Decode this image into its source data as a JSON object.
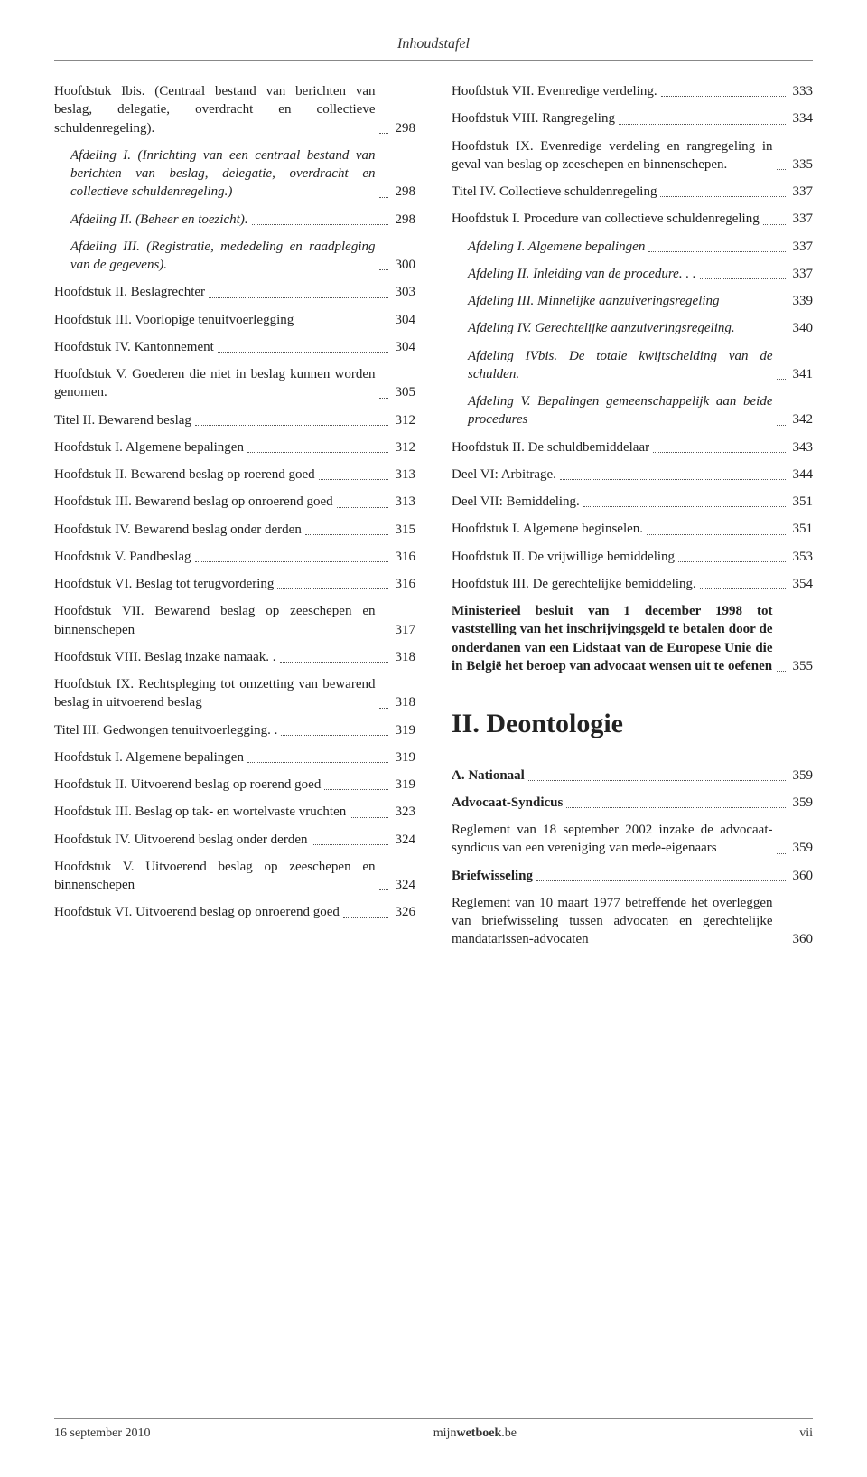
{
  "header": {
    "title": "Inhoudstafel"
  },
  "left": [
    {
      "label": "Hoofdstuk Ibis. (Centraal bestand van berichten van beslag, delegatie, overdracht en collectieve schuldenregeling).",
      "page": "298",
      "indent": 0
    },
    {
      "label": "Afdeling I. (Inrichting van een centraal bestand van berichten van beslag, delegatie, overdracht en collectieve schuldenregeling.)",
      "page": "298",
      "indent": 1,
      "italic": true
    },
    {
      "label": "Afdeling II. (Beheer en toezicht).",
      "page": "298",
      "indent": 1,
      "italic": true
    },
    {
      "label": "Afdeling III. (Registratie, mededeling en raadpleging van de gegevens).",
      "page": "300",
      "indent": 1,
      "italic": true
    },
    {
      "label": "Hoofdstuk II. Beslagrechter",
      "page": "303",
      "indent": 0
    },
    {
      "label": "Hoofdstuk III. Voorlopige tenuitvoerlegging",
      "page": "304",
      "indent": 0
    },
    {
      "label": "Hoofdstuk IV. Kantonnement",
      "page": "304",
      "indent": 0
    },
    {
      "label": "Hoofdstuk V. Goederen die niet in beslag kunnen worden genomen.",
      "page": "305",
      "indent": 0
    },
    {
      "label": "Titel II. Bewarend beslag",
      "page": "312",
      "indent": 0
    },
    {
      "label": "Hoofdstuk I. Algemene bepalingen",
      "page": "312",
      "indent": 0
    },
    {
      "label": "Hoofdstuk II. Bewarend beslag op roerend goed",
      "page": "313",
      "indent": 0
    },
    {
      "label": "Hoofdstuk III. Bewarend beslag op onroerend goed",
      "page": "313",
      "indent": 0
    },
    {
      "label": "Hoofdstuk IV. Bewarend beslag onder derden",
      "page": "315",
      "indent": 0
    },
    {
      "label": "Hoofdstuk V. Pandbeslag",
      "page": "316",
      "indent": 0
    },
    {
      "label": "Hoofdstuk VI. Beslag tot terugvordering",
      "page": "316",
      "indent": 0
    },
    {
      "label": "Hoofdstuk VII. Bewarend beslag op zeeschepen en binnenschepen",
      "page": "317",
      "indent": 0
    },
    {
      "label": "Hoofdstuk VIII. Beslag inzake namaak. .",
      "page": "318",
      "indent": 0
    },
    {
      "label": "Hoofdstuk IX. Rechtspleging tot omzetting van bewarend beslag in uitvoerend beslag",
      "page": "318",
      "indent": 0
    },
    {
      "label": "Titel III. Gedwongen tenuitvoerlegging. .",
      "page": "319",
      "indent": 0
    },
    {
      "label": "Hoofdstuk I. Algemene bepalingen",
      "page": "319",
      "indent": 0
    },
    {
      "label": "Hoofdstuk II. Uitvoerend beslag op roerend goed",
      "page": "319",
      "indent": 0
    },
    {
      "label": "Hoofdstuk III. Beslag op tak- en wortelvaste vruchten",
      "page": "323",
      "indent": 0
    },
    {
      "label": "Hoofdstuk IV. Uitvoerend beslag onder derden",
      "page": "324",
      "indent": 0
    },
    {
      "label": "Hoofdstuk V. Uitvoerend beslag op zeeschepen en binnenschepen",
      "page": "324",
      "indent": 0
    },
    {
      "label": "Hoofdstuk VI. Uitvoerend beslag op onroerend goed",
      "page": "326",
      "indent": 0
    }
  ],
  "right": [
    {
      "label": "Hoofdstuk VII. Evenredige verdeling.",
      "page": "333",
      "indent": 0
    },
    {
      "label": "Hoofdstuk VIII. Rangregeling",
      "page": "334",
      "indent": 0
    },
    {
      "label": "Hoofdstuk IX. Evenredige verdeling en rangregeling in geval van beslag op zeeschepen en binnenschepen.",
      "page": "335",
      "indent": 0
    },
    {
      "label": "Titel IV. Collectieve schuldenregeling",
      "page": "337",
      "indent": 0
    },
    {
      "label": "Hoofdstuk I. Procedure van collectieve schuldenregeling",
      "page": "337",
      "indent": 0
    },
    {
      "label": "Afdeling I. Algemene bepalingen",
      "page": "337",
      "indent": 1,
      "italic": true
    },
    {
      "label": "Afdeling II. Inleiding van de procedure. . .",
      "page": "337",
      "indent": 1,
      "italic": true
    },
    {
      "label": "Afdeling III. Minnelijke aanzuiveringsregeling",
      "page": "339",
      "indent": 1,
      "italic": true
    },
    {
      "label": "Afdeling IV. Gerechtelijke aanzuiveringsregeling.",
      "page": "340",
      "indent": 1,
      "italic": true
    },
    {
      "label": "Afdeling IVbis. De totale kwijtschelding van de schulden.",
      "page": "341",
      "indent": 1,
      "italic": true
    },
    {
      "label": "Afdeling V. Bepalingen gemeenschappelijk aan beide procedures",
      "page": "342",
      "indent": 1,
      "italic": true
    },
    {
      "label": "Hoofdstuk II. De schuldbemiddelaar",
      "page": "343",
      "indent": 0
    },
    {
      "label": "Deel VI: Arbitrage.",
      "page": "344",
      "indent": 0
    },
    {
      "label": "Deel VII: Bemiddeling.",
      "page": "351",
      "indent": 0
    },
    {
      "label": "Hoofdstuk I. Algemene beginselen.",
      "page": "351",
      "indent": 0
    },
    {
      "label": "Hoofdstuk II. De vrijwillige bemiddeling",
      "page": "353",
      "indent": 0
    },
    {
      "label": "Hoofdstuk III. De gerechtelijke bemiddeling.",
      "page": "354",
      "indent": 0
    },
    {
      "label": "Ministerieel besluit van 1 december 1998 tot vaststelling van het inschrijvingsgeld te betalen door de onderdanen van een Lidstaat van de Europese Unie die in België het beroep van advocaat wensen uit te oefenen",
      "page": "355",
      "indent": 0,
      "bold": true
    }
  ],
  "section2": {
    "heading": "II. Deontologie"
  },
  "right2": [
    {
      "label": "A. Nationaal",
      "page": "359",
      "indent": 0,
      "bold": true
    },
    {
      "label": "Advocaat-Syndicus",
      "page": "359",
      "indent": 0,
      "bold": true
    },
    {
      "label": "Reglement van 18 september 2002 inzake de advocaat-syndicus van een vereniging van mede-eigenaars",
      "page": "359",
      "indent": 0
    },
    {
      "label": "Briefwisseling",
      "page": "360",
      "indent": 0,
      "bold": true
    },
    {
      "label": "Reglement van 10 maart 1977 betreffende het overleggen van briefwisseling tussen advocaten en gerechtelijke mandatarissen-advocaten",
      "page": "360",
      "indent": 0
    }
  ],
  "footer": {
    "left": "16 september 2010",
    "center_mijn": "mijn",
    "center_wetboek": "wetboek",
    "center_be": ".be",
    "right": "vii"
  }
}
